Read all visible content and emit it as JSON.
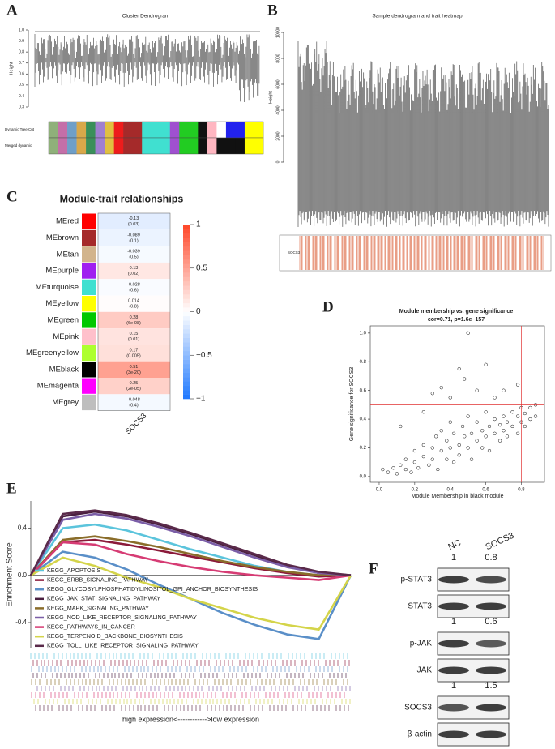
{
  "panel_labels": [
    "A",
    "B",
    "C",
    "D",
    "E",
    "F"
  ],
  "chart_data": [
    {
      "type": "dendrogram",
      "title": "Cluster Dendrogram",
      "y_label": "Height",
      "ylim": [
        0.3,
        1.0
      ],
      "yticks": [
        0.3,
        0.4,
        0.5,
        0.6,
        0.7,
        0.8,
        0.9,
        {
          "value": 1.0,
          "label": "1.0"
        }
      ],
      "bands": [
        {
          "name": "Dynamic Tree Cut",
          "colors": [
            "#8fb07a",
            "#c46fa8",
            "#6f9fc8",
            "#d9a84a",
            "#3a8f5a",
            "#a07fd0",
            "#e0c040",
            "#ee1c1c",
            "#a52a2a",
            "#a52a2a",
            "#40e0d0",
            "#40e0d0",
            "#40e0d0",
            "#a050d0",
            "#22cc22",
            "#22cc22",
            "#111111",
            "#ffb6c1",
            "#ffffff",
            "#2222ee",
            "#2222ee",
            "#ffff00",
            "#ffff00"
          ]
        },
        {
          "name": "Merged dynamic",
          "colors": [
            "#8fb07a",
            "#c46fa8",
            "#6f9fc8",
            "#d9a84a",
            "#3a8f5a",
            "#a07fd0",
            "#e0c040",
            "#ee1c1c",
            "#a52a2a",
            "#a52a2a",
            "#40e0d0",
            "#40e0d0",
            "#40e0d0",
            "#a050d0",
            "#22cc22",
            "#22cc22",
            "#111111",
            "#ffb6c1",
            "#111111",
            "#111111",
            "#111111",
            "#ffff00",
            "#ffff00"
          ]
        }
      ]
    },
    {
      "type": "dendrogram_heatmap",
      "title": "Sample dendrogram and trait heatmap",
      "y_label": "Height",
      "ylim": [
        0,
        10000
      ],
      "yticks": [
        0,
        2000,
        4000,
        6000,
        8000,
        10000
      ],
      "trait": "SOCS3",
      "color": "#d9542a"
    },
    {
      "type": "heatmap",
      "title": "Module-trait relationships",
      "x_label": "SOCS3",
      "categories": [
        "MEred",
        "MEbrown",
        "MEtan",
        "MEpurple",
        "MEturquoise",
        "MEyellow",
        "MEgreen",
        "MEpink",
        "MEgreenyellow",
        "MEblack",
        "MEmagenta",
        "MEgrey"
      ],
      "colors": [
        "#ff0000",
        "#a52a2a",
        "#d2b48c",
        "#a020f0",
        "#40e0d0",
        "#ffff00",
        "#00c800",
        "#ffc0cb",
        "#adff2f",
        "#000000",
        "#ff00ff",
        "#bebebe"
      ],
      "values": [
        -0.13,
        -0.089,
        -0.039,
        0.13,
        -0.028,
        0.014,
        0.28,
        0.15,
        0.17,
        0.51,
        0.25,
        -0.048
      ],
      "pvalues": [
        0.03,
        0.1,
        0.5,
        0.02,
        0.6,
        0.8,
        6e-08,
        0.01,
        0.005,
        3e-20,
        2e-05,
        0.4
      ],
      "pvalue_labels": [
        "(0.03)",
        "(0.1)",
        "(0.5)",
        "(0.02)",
        "(0.6)",
        "(0.8)",
        "(6e-08)",
        "(0.01)",
        "(0.005)",
        "(3e-20)",
        "(2e-05)",
        "(0.4)"
      ],
      "zlim": [
        -1,
        1
      ],
      "zticks": [
        1,
        0.5,
        0,
        {
          "value": -0.5,
          "label": "−0.5"
        },
        {
          "value": -1,
          "label": "−1"
        }
      ]
    },
    {
      "type": "scatter",
      "title": "Module membership vs. gene significance",
      "subtitle": "cor=0.71, p=1.6e−157",
      "x_label": "Module Membership in black module",
      "y_label": "Gene significance for SOCS3",
      "xlim": [
        -0.05,
        0.93
      ],
      "ylim": [
        -0.04,
        1.05
      ],
      "xticks": [
        {
          "value": 0,
          "label": "0.0"
        },
        0.2,
        0.4,
        0.6,
        0.8
      ],
      "yticks": [
        {
          "value": 0,
          "label": "0.0"
        },
        0.2,
        0.4,
        0.6,
        0.8,
        {
          "value": 1,
          "label": "1.0"
        }
      ],
      "hline": 0.5,
      "vline": 0.8,
      "line_color": "#e03030",
      "x": [
        0.02,
        0.05,
        0.08,
        0.1,
        0.12,
        0.15,
        0.15,
        0.18,
        0.2,
        0.2,
        0.22,
        0.25,
        0.25,
        0.28,
        0.3,
        0.3,
        0.32,
        0.33,
        0.35,
        0.35,
        0.38,
        0.38,
        0.4,
        0.4,
        0.42,
        0.42,
        0.45,
        0.45,
        0.47,
        0.48,
        0.5,
        0.5,
        0.52,
        0.52,
        0.55,
        0.55,
        0.58,
        0.58,
        0.6,
        0.6,
        0.62,
        0.62,
        0.65,
        0.65,
        0.68,
        0.68,
        0.7,
        0.7,
        0.72,
        0.72,
        0.75,
        0.75,
        0.78,
        0.78,
        0.8,
        0.8,
        0.82,
        0.82,
        0.85,
        0.85,
        0.88,
        0.88,
        0.3,
        0.35,
        0.45,
        0.5,
        0.48,
        0.55,
        0.6,
        0.65,
        0.7,
        0.78,
        0.12,
        0.25,
        0.4
      ],
      "y": [
        0.05,
        0.03,
        0.06,
        0.02,
        0.08,
        0.05,
        0.12,
        0.03,
        0.1,
        0.18,
        0.06,
        0.14,
        0.22,
        0.08,
        0.2,
        0.12,
        0.28,
        0.05,
        0.18,
        0.32,
        0.12,
        0.25,
        0.2,
        0.38,
        0.1,
        0.3,
        0.22,
        0.15,
        0.35,
        0.28,
        0.2,
        0.42,
        0.3,
        0.12,
        0.25,
        0.38,
        0.32,
        0.2,
        0.28,
        0.45,
        0.35,
        0.18,
        0.3,
        0.4,
        0.25,
        0.36,
        0.32,
        0.42,
        0.28,
        0.38,
        0.35,
        0.45,
        0.3,
        0.42,
        0.38,
        0.48,
        0.35,
        0.44,
        0.4,
        0.48,
        0.42,
        0.5,
        0.58,
        0.62,
        0.75,
        1.0,
        0.68,
        0.6,
        0.78,
        0.55,
        0.6,
        0.64,
        0.35,
        0.45,
        0.55
      ]
    },
    {
      "type": "line",
      "y_label": "Enrichment Score",
      "x_label": "high expression<------------>low expression",
      "ylim": [
        -0.62,
        0.63
      ],
      "yticks": [
        {
          "value": -0.4,
          "label": "-0.4"
        },
        {
          "value": 0,
          "label": "0.0"
        },
        0.4
      ],
      "xlim": [
        0,
        10
      ],
      "x": [
        0,
        1,
        2,
        3,
        4,
        5,
        6,
        7,
        8,
        9,
        10
      ],
      "series": [
        {
          "name": "KEGG_APOPTOSIS",
          "color": "#5bc4dc",
          "values": [
            0,
            0.4,
            0.43,
            0.38,
            0.3,
            0.22,
            0.15,
            0.08,
            0.03,
            0,
            0
          ]
        },
        {
          "name": "KEGG_ERBB_SIGNALING_PATHWAY",
          "color": "#8b1a3a",
          "values": [
            0,
            0.28,
            0.3,
            0.26,
            0.21,
            0.16,
            0.11,
            0.06,
            0.02,
            -0.01,
            0
          ]
        },
        {
          "name": "KEGG_GLYCOSYLPHOSPHATIDYLINOSITOL_GPI_ANCHOR_BIOSYNTHESIS",
          "color": "#5a8fc8",
          "values": [
            0,
            0.2,
            0.15,
            0.05,
            -0.08,
            -0.2,
            -0.32,
            -0.42,
            -0.5,
            -0.54,
            0
          ]
        },
        {
          "name": "KEGG_JAK_STAT_SIGNALING_PATHWAY",
          "color": "#4a1f3f",
          "values": [
            0,
            0.5,
            0.54,
            0.5,
            0.43,
            0.35,
            0.26,
            0.17,
            0.08,
            0.02,
            0
          ]
        },
        {
          "name": "KEGG_MAPK_SIGNALING_PATHWAY",
          "color": "#8a6d2a",
          "values": [
            0,
            0.3,
            0.33,
            0.29,
            0.24,
            0.18,
            0.12,
            0.07,
            0.03,
            0,
            0
          ]
        },
        {
          "name": "KEGG_NOD_LIKE_RECEPTOR_SIGNALING_PATHWAY",
          "color": "#7b5ea7",
          "values": [
            0,
            0.47,
            0.52,
            0.48,
            0.41,
            0.33,
            0.24,
            0.15,
            0.07,
            0.02,
            0
          ]
        },
        {
          "name": "KEGG_PATHWAYS_IN_CANCER",
          "color": "#d63c74",
          "values": [
            0,
            0.28,
            0.26,
            0.18,
            0.12,
            0.07,
            0.03,
            0,
            -0.02,
            -0.04,
            0
          ]
        },
        {
          "name": "KEGG_TERPENOID_BACKBONE_BIOSYNTHESIS",
          "color": "#d4d44a",
          "values": [
            0,
            0.15,
            0.08,
            -0.02,
            -0.1,
            -0.2,
            -0.28,
            -0.36,
            -0.42,
            -0.46,
            0
          ]
        },
        {
          "name": "KEGG_TOLL_LIKE_RECEPTOR_SIGNALING_PATHWAY",
          "color": "#5a2a4a",
          "values": [
            0,
            0.52,
            0.55,
            0.51,
            0.44,
            0.36,
            0.27,
            0.18,
            0.09,
            0.03,
            0
          ]
        }
      ]
    },
    {
      "type": "blot",
      "columns": [
        "NC",
        "SOCS3"
      ],
      "rows": [
        {
          "name": "p-STAT3",
          "ratios": [
            1,
            0.8
          ]
        },
        {
          "name": "STAT3"
        },
        {
          "name": "p-JAK",
          "ratios": [
            1,
            0.6
          ]
        },
        {
          "name": "JAK"
        },
        {
          "name": "SOCS3",
          "ratios": [
            1,
            1.5
          ]
        },
        {
          "name": "β-actin"
        }
      ]
    }
  ]
}
